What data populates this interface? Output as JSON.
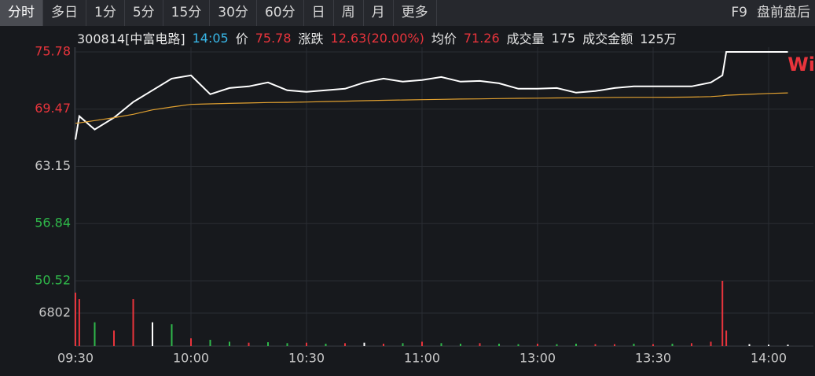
{
  "tabs": [
    "分时",
    "多日",
    "1分",
    "5分",
    "15分",
    "30分",
    "60分",
    "日",
    "周",
    "月",
    "更多"
  ],
  "active_tab": 0,
  "right_tabs": [
    "F9",
    "盘前盘后"
  ],
  "quote": {
    "code": "300814[中富电路]",
    "time": "14:05",
    "price_label": "价",
    "price": "75.78",
    "change_label": "涨跌",
    "change": "12.63(20.00%)",
    "avg_label": "均价",
    "avg": "71.26",
    "volume_label": "成交量",
    "volume": "175",
    "amount_label": "成交金额",
    "amount": "125万"
  },
  "watermark": "Wi",
  "chart_data": [
    {
      "type": "line",
      "x": [
        "09:30",
        "09:31",
        "09:35",
        "09:40",
        "09:45",
        "09:50",
        "09:55",
        "10:00",
        "10:05",
        "10:10",
        "10:15",
        "10:20",
        "10:25",
        "10:30",
        "10:35",
        "10:40",
        "10:45",
        "10:50",
        "10:55",
        "11:00",
        "11:05",
        "11:10",
        "11:15",
        "11:20",
        "11:25",
        "11:30",
        "13:00",
        "13:05",
        "13:10",
        "13:15",
        "13:20",
        "13:25",
        "13:30",
        "13:35",
        "13:40",
        "13:45",
        "13:48",
        "13:49",
        "13:55",
        "14:00",
        "14:05"
      ],
      "series": [
        {
          "color": "#ffffff",
          "values": [
            66.1,
            68.69,
            67.22,
            68.52,
            70.25,
            71.54,
            72.84,
            73.19,
            71.11,
            71.8,
            71.98,
            72.41,
            71.54,
            71.37,
            71.54,
            71.72,
            72.41,
            72.84,
            72.5,
            72.67,
            73.01,
            72.5,
            72.58,
            72.32,
            71.72,
            71.72,
            71.72,
            71.8,
            71.28,
            71.46,
            71.8,
            71.98,
            71.98,
            71.98,
            71.98,
            72.41,
            73.19,
            75.78,
            75.78,
            75.78,
            75.78
          ]
        },
        {
          "color": "#e0a030",
          "values": [
            67.91,
            67.95,
            68.2,
            68.52,
            68.9,
            69.38,
            69.7,
            69.99,
            70.05,
            70.1,
            70.15,
            70.2,
            70.22,
            70.25,
            70.3,
            70.35,
            70.4,
            70.44,
            70.48,
            70.51,
            70.55,
            70.58,
            70.6,
            70.63,
            70.66,
            70.68,
            70.68,
            70.7,
            70.72,
            70.74,
            70.76,
            70.77,
            70.77,
            70.78,
            70.8,
            70.85,
            70.94,
            71.0,
            71.1,
            71.2,
            71.26
          ]
        }
      ],
      "ylim": [
        50.52,
        75.78
      ],
      "yticks": [
        75.78,
        69.47,
        63.15,
        56.84,
        50.52
      ],
      "ytick_colors": [
        "#e8343c",
        "#e8343c",
        "#c8c8c8",
        "#2fb84a",
        "#2fb84a"
      ],
      "grid": true
    },
    {
      "type": "bar",
      "x": [
        "09:30",
        "09:31",
        "09:35",
        "09:40",
        "09:45",
        "09:50",
        "09:55",
        "10:00",
        "10:05",
        "10:10",
        "10:15",
        "10:20",
        "10:25",
        "10:30",
        "10:35",
        "10:40",
        "10:45",
        "10:50",
        "10:55",
        "11:00",
        "11:05",
        "11:10",
        "11:15",
        "11:20",
        "11:25",
        "11:30",
        "13:00",
        "13:05",
        "13:10",
        "13:15",
        "13:20",
        "13:25",
        "13:30",
        "13:35",
        "13:40",
        "13:45",
        "13:48",
        "13:49",
        "13:55",
        "14:00",
        "14:05"
      ],
      "values": [
        11000,
        9700,
        4900,
        3200,
        9700,
        4900,
        4500,
        1600,
        1300,
        900,
        700,
        800,
        600,
        700,
        500,
        600,
        700,
        500,
        600,
        900,
        600,
        500,
        600,
        500,
        400,
        400,
        500,
        400,
        500,
        400,
        400,
        500,
        400,
        500,
        600,
        900,
        13440,
        3200,
        400,
        300,
        300
      ],
      "colors": [
        "#e8343c",
        "#e8343c",
        "#2fb84a",
        "#e8343c",
        "#e8343c",
        "#ffffff",
        "#2fb84a",
        "#e8343c",
        "#2fb84a",
        "#2fb84a",
        "#e8343c",
        "#2fb84a",
        "#2fb84a",
        "#e8343c",
        "#2fb84a",
        "#e8343c",
        "#ffffff",
        "#e8343c",
        "#2fb84a",
        "#e8343c",
        "#2fb84a",
        "#2fb84a",
        "#e8343c",
        "#2fb84a",
        "#2fb84a",
        "#2fb84a",
        "#e8343c",
        "#2fb84a",
        "#2fb84a",
        "#e8343c",
        "#e8343c",
        "#2fb84a",
        "#e8343c",
        "#2fb84a",
        "#e8343c",
        "#e8343c",
        "#e8343c",
        "#e8343c",
        "#ffffff",
        "#ffffff",
        "#ffffff"
      ],
      "ylim": [
        0,
        13440
      ],
      "yticks": [
        6802
      ],
      "xticks": [
        "09:30",
        "10:00",
        "10:30",
        "11:00",
        "13:00",
        "13:30",
        "14:00"
      ]
    }
  ]
}
